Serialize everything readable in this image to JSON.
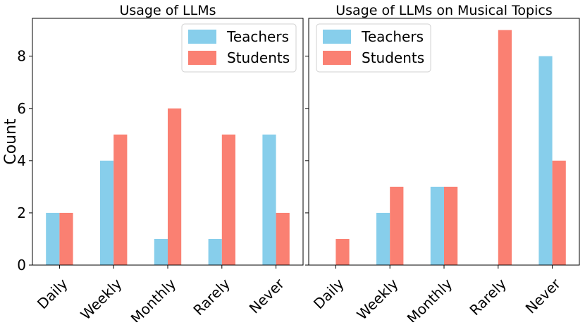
{
  "figure": {
    "ylabel": "Count"
  },
  "chart_data": [
    {
      "type": "bar",
      "title": "Usage of LLMs",
      "categories": [
        "Daily",
        "Weekly",
        "Monthly",
        "Rarely",
        "Never"
      ],
      "series": [
        {
          "name": "Teachers",
          "color": "#87CEEB",
          "values": [
            2,
            4,
            1,
            1,
            5
          ]
        },
        {
          "name": "Students",
          "color": "#FA8072",
          "values": [
            2,
            5,
            6,
            5,
            2
          ]
        }
      ],
      "xlabel": "",
      "ylabel": "Count",
      "ylim": [
        0,
        9.45
      ],
      "yticks": [
        0,
        2,
        4,
        6,
        8
      ],
      "legend": "top-right",
      "grid": false
    },
    {
      "type": "bar",
      "title": "Usage of LLMs on Musical Topics",
      "categories": [
        "Daily",
        "Weekly",
        "Monthly",
        "Rarely",
        "Never"
      ],
      "series": [
        {
          "name": "Teachers",
          "color": "#87CEEB",
          "values": [
            0,
            2,
            3,
            0,
            8
          ]
        },
        {
          "name": "Students",
          "color": "#FA8072",
          "values": [
            1,
            3,
            3,
            9,
            4
          ]
        }
      ],
      "xlabel": "",
      "ylabel": "",
      "ylim": [
        0,
        9.45
      ],
      "yticks": [
        0,
        2,
        4,
        6,
        8
      ],
      "legend": "top-left",
      "grid": false
    }
  ]
}
